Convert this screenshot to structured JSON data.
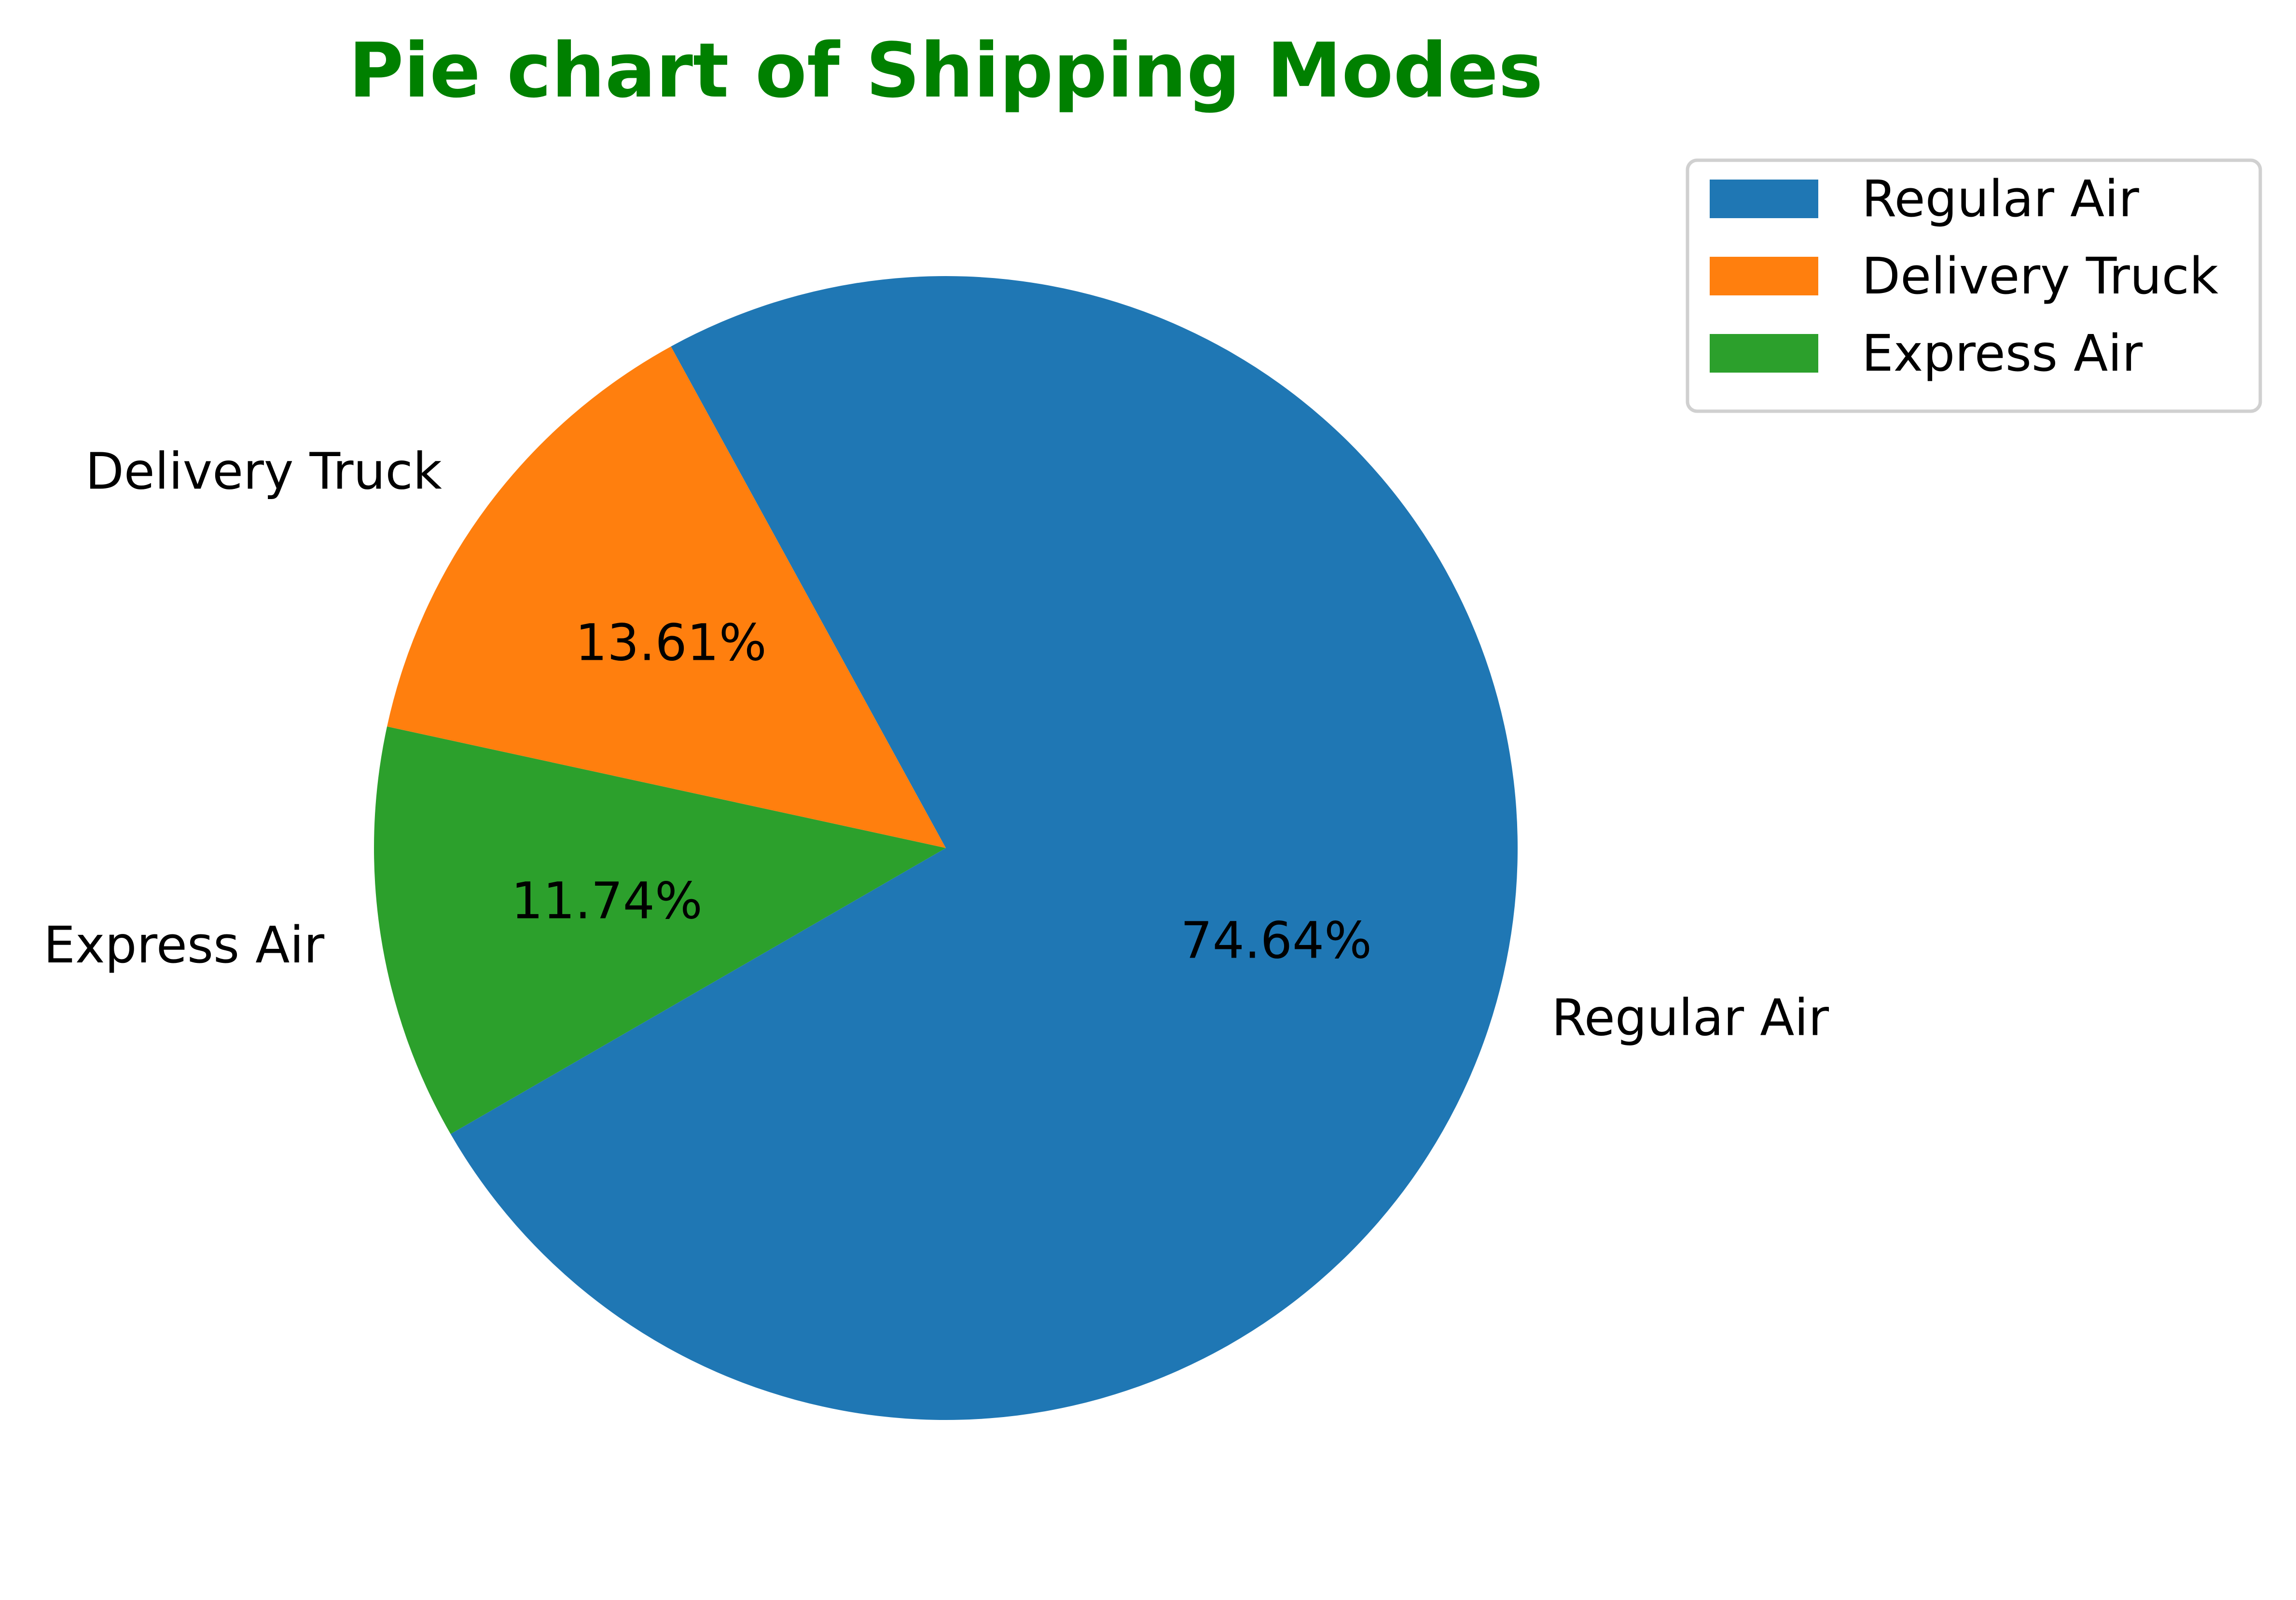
{
  "chart_data": {
    "type": "pie",
    "title": "Pie chart of Shipping Modes",
    "title_color": "#008000",
    "slices": [
      {
        "label": "Regular Air",
        "value": 74.64,
        "pct_label": "74.64%",
        "color": "#1f77b4"
      },
      {
        "label": "Delivery Truck",
        "value": 13.61,
        "pct_label": "13.61%",
        "color": "#ff7f0e"
      },
      {
        "label": "Express Air",
        "value": 11.74,
        "pct_label": "11.74%",
        "color": "#2ca02c"
      }
    ],
    "legend": {
      "placement": "top-right",
      "entries": [
        "Regular Air",
        "Delivery Truck",
        "Express Air"
      ]
    }
  }
}
